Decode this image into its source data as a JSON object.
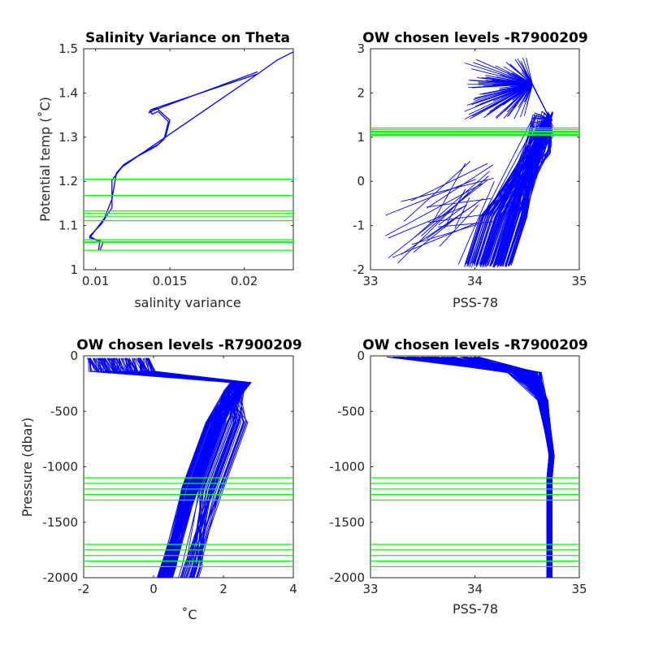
{
  "colors": {
    "profile": "#0000ff",
    "level": "#00ff00",
    "axis": "#262626"
  },
  "chart_data": [
    {
      "type": "line",
      "title": "Salinity Variance on Theta",
      "xlabel": "salinity variance",
      "ylabel": "Potential temp (˚C)",
      "xlim": [
        0.0092,
        0.0233
      ],
      "ylim": [
        1.0,
        1.5
      ],
      "xticks": [
        0.01,
        0.015,
        0.02
      ],
      "xtick_labels": [
        "0.01",
        "0.015",
        "0.02"
      ],
      "yticks": [
        1,
        1.1,
        1.2,
        1.3,
        1.4,
        1.5
      ],
      "ytick_labels": [
        "1",
        "1.1",
        "1.2",
        "1.3",
        "1.4",
        "1.5"
      ],
      "series": [
        {
          "points": [
            [
              0.0233,
              1.493
            ],
            [
              0.0222,
              1.474
            ],
            [
              0.0209,
              1.443
            ],
            [
              0.0137,
              1.362
            ],
            [
              0.0136,
              1.355
            ],
            [
              0.0141,
              1.366
            ],
            [
              0.015,
              1.338
            ],
            [
              0.0147,
              1.3
            ],
            [
              0.0142,
              1.283
            ],
            [
              0.013,
              1.261
            ],
            [
              0.0119,
              1.238
            ],
            [
              0.0114,
              1.219
            ],
            [
              0.0111,
              1.16
            ],
            [
              0.0106,
              1.117
            ],
            [
              0.0096,
              1.072
            ],
            [
              0.0103,
              1.066
            ],
            [
              0.0102,
              1.045
            ]
          ]
        },
        {
          "points": [
            [
              0.0209,
              1.448
            ],
            [
              0.0137,
              1.358
            ],
            [
              0.0138,
              1.352
            ],
            [
              0.0142,
              1.358
            ],
            [
              0.0149,
              1.335
            ],
            [
              0.0146,
              1.295
            ],
            [
              0.0141,
              1.28
            ],
            [
              0.0128,
              1.256
            ],
            [
              0.0118,
              1.233
            ]
          ]
        },
        {
          "points": [
            [
              0.0209,
              1.443
            ],
            [
              0.0118,
              1.233
            ],
            [
              0.0111,
              1.203
            ],
            [
              0.0111,
              1.14
            ],
            [
              0.0104,
              1.104
            ],
            [
              0.0096,
              1.076
            ],
            [
              0.0101,
              1.066
            ],
            [
              0.0105,
              1.062
            ],
            [
              0.0103,
              1.044
            ]
          ]
        }
      ],
      "levels": [
        1.205,
        1.168,
        1.133,
        1.127,
        1.121,
        1.111,
        1.068,
        1.064,
        1.062,
        1.044
      ]
    },
    {
      "type": "line",
      "title": "OW chosen levels -R7900209",
      "xlabel": "PSS-78",
      "ylabel": "",
      "xlim": [
        33,
        35
      ],
      "ylim": [
        -2,
        3
      ],
      "xticks": [
        33,
        34,
        35
      ],
      "xtick_labels": [
        "33",
        "34",
        "35"
      ],
      "yticks": [
        -2,
        -1,
        0,
        1,
        2,
        3
      ],
      "ytick_labels": [
        "-2",
        "-1",
        "0",
        "1",
        "2",
        "3"
      ],
      "levels": [
        1.205,
        1.168,
        1.133,
        1.127,
        1.121,
        1.111,
        1.068,
        1.064,
        1.062,
        1.044
      ]
    },
    {
      "type": "line",
      "title": "OW chosen levels -R7900209",
      "xlabel": "˚C",
      "ylabel": "Pressure (dbar)",
      "xlim": [
        -2,
        4
      ],
      "ylim": [
        -2000,
        0
      ],
      "xticks": [
        -2,
        0,
        2,
        4
      ],
      "xtick_labels": [
        "-2",
        "0",
        "2",
        "4"
      ],
      "yticks": [
        -2000,
        -1500,
        -1000,
        -500,
        0
      ],
      "ytick_labels": [
        "-2000",
        "-1500",
        "-1000",
        "-500",
        "0"
      ],
      "levels": [
        -1100,
        -1150,
        -1200,
        -1250,
        -1300,
        -1700,
        -1750,
        -1800,
        -1850,
        -1900
      ]
    },
    {
      "type": "line",
      "title": "OW chosen levels -R7900209",
      "xlabel": "PSS-78",
      "ylabel": "",
      "xlim": [
        33,
        35
      ],
      "ylim": [
        -2000,
        0
      ],
      "xticks": [
        33,
        34,
        35
      ],
      "xtick_labels": [
        "33",
        "34",
        "35"
      ],
      "yticks": [
        -2000,
        -1500,
        -1000,
        -500,
        0
      ],
      "ytick_labels": [
        "-2000",
        "-1500",
        "-1000",
        "-500",
        "0"
      ],
      "levels": [
        -1100,
        -1150,
        -1200,
        -1250,
        -1300,
        -1700,
        -1750,
        -1800,
        -1850,
        -1900
      ]
    }
  ]
}
